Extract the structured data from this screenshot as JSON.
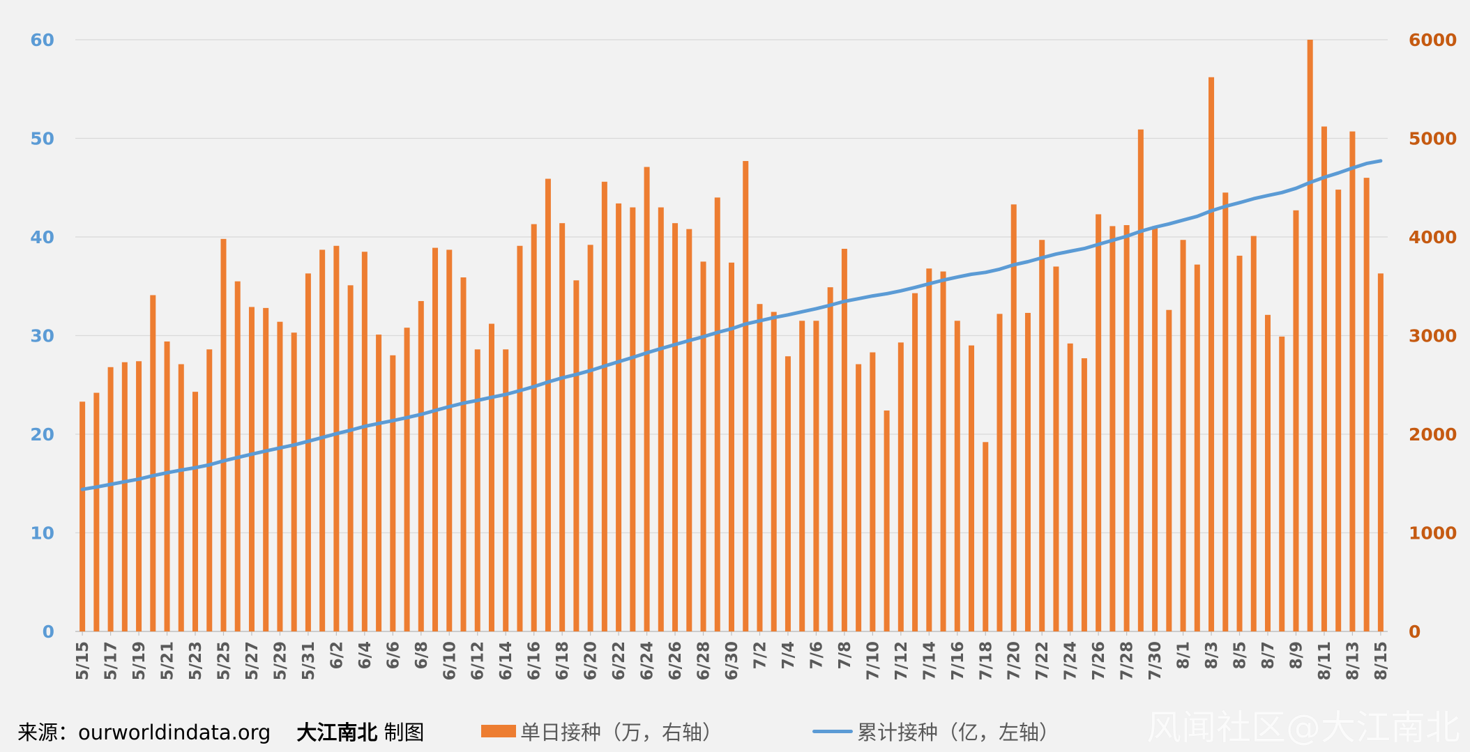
{
  "chart_data": {
    "type": "bar+line",
    "categories": [
      "5/15",
      "5/16",
      "5/17",
      "5/18",
      "5/19",
      "5/20",
      "5/21",
      "5/22",
      "5/23",
      "5/24",
      "5/25",
      "5/26",
      "5/27",
      "5/28",
      "5/29",
      "5/30",
      "5/31",
      "6/1",
      "6/2",
      "6/3",
      "6/4",
      "6/5",
      "6/6",
      "6/7",
      "6/8",
      "6/9",
      "6/10",
      "6/11",
      "6/12",
      "6/13",
      "6/14",
      "6/15",
      "6/16",
      "6/17",
      "6/18",
      "6/19",
      "6/20",
      "6/21",
      "6/22",
      "6/23",
      "6/24",
      "6/25",
      "6/26",
      "6/27",
      "6/28",
      "6/29",
      "6/30",
      "7/1",
      "7/2",
      "7/3",
      "7/4",
      "7/5",
      "7/6",
      "7/7",
      "7/8",
      "7/9",
      "7/10",
      "7/11",
      "7/12",
      "7/13",
      "7/14",
      "7/15",
      "7/16",
      "7/17",
      "7/18",
      "7/19",
      "7/20",
      "7/21",
      "7/22",
      "7/23",
      "7/24",
      "7/25",
      "7/26",
      "7/27",
      "7/28",
      "7/29",
      "7/30",
      "7/31",
      "8/1",
      "8/2",
      "8/3",
      "8/4",
      "8/5",
      "8/6",
      "8/7",
      "8/8",
      "8/9",
      "8/10",
      "8/11",
      "8/12",
      "8/13",
      "8/14",
      "8/15"
    ],
    "tick_labels": [
      "5/15",
      "5/17",
      "5/19",
      "5/21",
      "5/23",
      "5/25",
      "5/27",
      "5/29",
      "5/31",
      "6/2",
      "6/4",
      "6/6",
      "6/8",
      "6/10",
      "6/12",
      "6/14",
      "6/16",
      "6/18",
      "6/20",
      "6/22",
      "6/24",
      "6/26",
      "6/28",
      "6/30",
      "7/2",
      "7/4",
      "7/6",
      "7/8",
      "7/10",
      "7/12",
      "7/14",
      "7/16",
      "7/18",
      "7/20",
      "7/22",
      "7/24",
      "7/26",
      "7/28",
      "7/30",
      "8/1",
      "8/3",
      "8/5",
      "8/7",
      "8/9",
      "8/11",
      "8/13",
      "8/15"
    ],
    "series": [
      {
        "name": "单日接种（万，右轴）",
        "type": "bar",
        "axis": "right",
        "color": "#ed7d31",
        "values": [
          2330,
          2420,
          2680,
          2730,
          2740,
          3410,
          2940,
          2710,
          2430,
          2860,
          3980,
          3550,
          3290,
          3280,
          3140,
          3030,
          3630,
          3870,
          3910,
          3510,
          3850,
          3010,
          2800,
          3080,
          3350,
          3890,
          3870,
          3590,
          2860,
          3120,
          2860,
          3910,
          4130,
          4590,
          4140,
          3560,
          3920,
          4560,
          4340,
          4300,
          4710,
          4300,
          4140,
          4080,
          3750,
          4400,
          3740,
          4770,
          3320,
          3240,
          2790,
          3150,
          3150,
          3490,
          3880,
          2710,
          2830,
          2240,
          2930,
          3430,
          3680,
          3650,
          3150,
          2900,
          1920,
          3220,
          4330,
          3230,
          3970,
          3700,
          2920,
          2770,
          4230,
          4110,
          4120,
          5090,
          4110,
          3260,
          3970,
          3720,
          5620,
          4450,
          3810,
          4010,
          3210,
          2990,
          4270,
          6000,
          5120,
          4480,
          5070,
          4600,
          3630
        ]
      },
      {
        "name": "累计接种（亿，左轴）",
        "type": "line",
        "axis": "left",
        "color": "#5b9bd5",
        "values": [
          14.4,
          14.64,
          14.91,
          15.18,
          15.45,
          15.79,
          16.09,
          16.36,
          16.6,
          16.89,
          17.29,
          17.64,
          17.97,
          18.3,
          18.61,
          18.91,
          19.28,
          19.66,
          20.05,
          20.4,
          20.79,
          21.09,
          21.37,
          21.68,
          22.01,
          22.4,
          22.79,
          23.15,
          23.43,
          23.74,
          24.03,
          24.42,
          24.83,
          25.29,
          25.71,
          26.06,
          26.45,
          26.91,
          27.35,
          27.78,
          28.25,
          28.68,
          29.09,
          29.5,
          29.88,
          30.32,
          30.69,
          31.17,
          31.5,
          31.82,
          32.1,
          32.42,
          32.73,
          33.08,
          33.47,
          33.74,
          34.02,
          34.25,
          34.54,
          34.88,
          35.25,
          35.62,
          35.93,
          36.22,
          36.41,
          36.73,
          37.17,
          37.49,
          37.89,
          38.26,
          38.55,
          38.83,
          39.25,
          39.66,
          40.07,
          40.58,
          40.99,
          41.32,
          41.71,
          42.09,
          42.65,
          43.1,
          43.48,
          43.88,
          44.2,
          44.5,
          44.93,
          45.53,
          46.04,
          46.49,
          46.99,
          47.45,
          47.72
        ]
      }
    ],
    "left_axis": {
      "ticks": [
        "0",
        "10",
        "20",
        "30",
        "40",
        "50",
        "60"
      ],
      "ylim": [
        0,
        60
      ],
      "color": "#5b9bd5"
    },
    "right_axis": {
      "ticks": [
        "0",
        "1000",
        "2000",
        "3000",
        "4000",
        "5000",
        "6000"
      ],
      "ylim": [
        0,
        6000
      ],
      "color": "#c55a11"
    },
    "grid": true
  },
  "footer": {
    "source_prefix": "来源：",
    "source_url": "ourworldindata.org",
    "author": "大江南北",
    "author_suffix": " 制图",
    "legend_bar": "单日接种（万，右轴）",
    "legend_line": "累计接种（亿，左轴）"
  },
  "watermark": "风闻社区@大江南北"
}
